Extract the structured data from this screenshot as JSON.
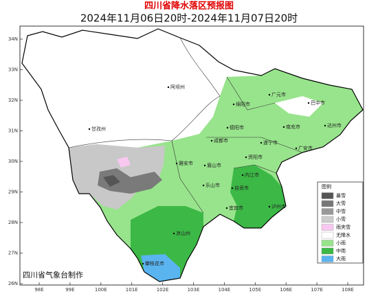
{
  "header": {
    "title": "四川省降水落区预报图",
    "subtitle": "2024年11月06日20时-2024年11月07日20时"
  },
  "latitude_labels": [
    "34N",
    "33N",
    "32N",
    "31N",
    "30N",
    "29N",
    "28N",
    "27N",
    "26N"
  ],
  "longitude_labels": [
    "98E",
    "99E",
    "100E",
    "101E",
    "102E",
    "103E",
    "104E",
    "105E",
    "106E",
    "107E",
    "108E"
  ],
  "places": [
    "阿坝州",
    "甘孜州",
    "绵阳市",
    "广元市",
    "巴中市",
    "达州市",
    "南充市",
    "德阳市",
    "成都市",
    "遂宁市",
    "广安市",
    "雅安市",
    "眉山市",
    "资阳市",
    "乐山市",
    "内江市",
    "自贡市",
    "宜宾市",
    "泸州市",
    "凉山州",
    "攀枝花市"
  ],
  "legend": {
    "title": "图例",
    "items": [
      "暴雪",
      "大雪",
      "中雪",
      "小雪",
      "雨夹雪",
      "无降水",
      "小雨",
      "中雨",
      "大雨"
    ]
  },
  "footer": "四川省气象台制作"
}
